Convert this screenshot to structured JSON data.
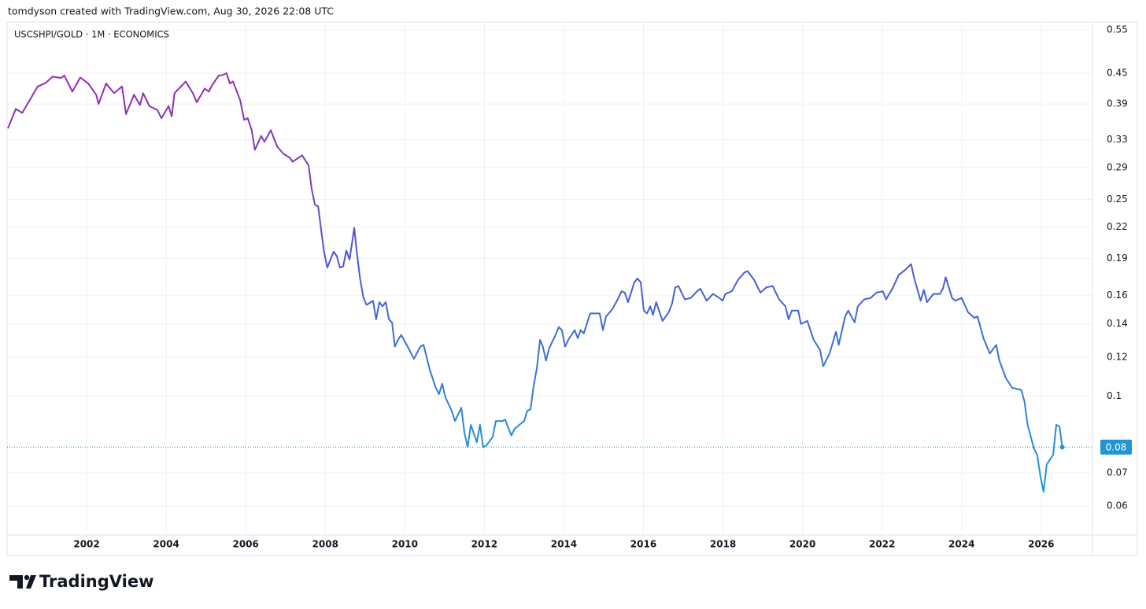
{
  "attribution": "tomdyson created with TradingView.com, Aug 30, 2026 22:08 UTC",
  "footer": {
    "brand": "TradingView"
  },
  "chart_data": {
    "type": "line",
    "title": "USCSHPI/GOLD · 1M · ECONOMICS",
    "log_scale": true,
    "grid": true,
    "line_gradient": [
      "#9c27b0",
      "#4a5bd4",
      "#1e9bd7"
    ],
    "last_value_color": "#2196d3",
    "last_value_label": "0.08",
    "xlim": [
      2000,
      2027.29
    ],
    "xticks": [
      2002,
      2004,
      2006,
      2008,
      2010,
      2012,
      2014,
      2016,
      2018,
      2020,
      2022,
      2024,
      2026
    ],
    "ylim": [
      0.0524,
      0.571
    ],
    "yticks": [
      0.55,
      0.45,
      0.39,
      0.33,
      0.29,
      0.25,
      0.22,
      0.19,
      0.16,
      0.14,
      0.12,
      0.1,
      0.07,
      0.06
    ],
    "x": [
      2000.02,
      2000.22,
      2000.38,
      2000.57,
      2000.77,
      2000.97,
      2001.15,
      2001.35,
      2001.44,
      2001.64,
      2001.84,
      2002.04,
      2002.24,
      2002.3,
      2002.49,
      2002.69,
      2002.89,
      2002.99,
      2003.19,
      2003.34,
      2003.42,
      2003.58,
      2003.78,
      2003.88,
      2004.06,
      2004.14,
      2004.21,
      2004.41,
      2004.49,
      2004.67,
      2004.77,
      2004.97,
      2005.07,
      2005.16,
      2005.32,
      2005.42,
      2005.52,
      2005.6,
      2005.68,
      2005.86,
      2005.96,
      2006.05,
      2006.15,
      2006.23,
      2006.39,
      2006.47,
      2006.63,
      2006.79,
      2006.95,
      2007.1,
      2007.18,
      2007.42,
      2007.58,
      2007.66,
      2007.74,
      2007.82,
      2007.89,
      2007.97,
      2008.05,
      2008.21,
      2008.29,
      2008.37,
      2008.45,
      2008.53,
      2008.61,
      2008.73,
      2008.8,
      2008.88,
      2008.96,
      2009.04,
      2009.2,
      2009.28,
      2009.36,
      2009.44,
      2009.52,
      2009.6,
      2009.68,
      2009.75,
      2009.83,
      2009.91,
      2010.07,
      2010.23,
      2010.39,
      2010.47,
      2010.63,
      2010.78,
      2010.86,
      2010.94,
      2011.02,
      2011.18,
      2011.26,
      2011.42,
      2011.5,
      2011.58,
      2011.66,
      2011.81,
      2011.89,
      2011.97,
      2012.05,
      2012.21,
      2012.29,
      2012.45,
      2012.52,
      2012.68,
      2012.76,
      2012.92,
      2013.0,
      2013.08,
      2013.16,
      2013.24,
      2013.32,
      2013.4,
      2013.47,
      2013.55,
      2013.63,
      2013.79,
      2013.87,
      2013.95,
      2014.03,
      2014.11,
      2014.27,
      2014.35,
      2014.42,
      2014.5,
      2014.66,
      2014.82,
      2014.9,
      2014.98,
      2015.06,
      2015.22,
      2015.37,
      2015.45,
      2015.53,
      2015.61,
      2015.69,
      2015.77,
      2015.85,
      2015.93,
      2016.01,
      2016.09,
      2016.17,
      2016.24,
      2016.32,
      2016.48,
      2016.64,
      2016.72,
      2016.8,
      2016.88,
      2017.04,
      2017.19,
      2017.35,
      2017.43,
      2017.59,
      2017.75,
      2017.91,
      2017.99,
      2018.06,
      2018.22,
      2018.38,
      2018.54,
      2018.62,
      2018.78,
      2018.94,
      2019.09,
      2019.25,
      2019.41,
      2019.57,
      2019.65,
      2019.73,
      2019.89,
      2019.96,
      2020.12,
      2020.28,
      2020.44,
      2020.52,
      2020.68,
      2020.84,
      2020.91,
      2021.07,
      2021.15,
      2021.31,
      2021.39,
      2021.55,
      2021.71,
      2021.86,
      2022.02,
      2022.1,
      2022.26,
      2022.42,
      2022.58,
      2022.73,
      2022.81,
      2022.97,
      2023.05,
      2023.13,
      2023.29,
      2023.45,
      2023.53,
      2023.6,
      2023.76,
      2023.84,
      2024.0,
      2024.16,
      2024.32,
      2024.4,
      2024.55,
      2024.71,
      2024.87,
      2024.95,
      2025.11,
      2025.27,
      2025.5,
      2025.58,
      2025.66,
      2025.82,
      2025.9,
      2025.98,
      2026.06,
      2026.14,
      2026.3,
      2026.38,
      2026.46,
      2026.53
    ],
    "values": [
      0.348,
      0.381,
      0.374,
      0.397,
      0.423,
      0.43,
      0.443,
      0.44,
      0.445,
      0.413,
      0.441,
      0.429,
      0.407,
      0.39,
      0.429,
      0.41,
      0.423,
      0.372,
      0.407,
      0.388,
      0.41,
      0.386,
      0.379,
      0.365,
      0.386,
      0.368,
      0.41,
      0.426,
      0.433,
      0.41,
      0.393,
      0.419,
      0.413,
      0.426,
      0.445,
      0.446,
      0.45,
      0.429,
      0.433,
      0.397,
      0.362,
      0.365,
      0.345,
      0.315,
      0.336,
      0.327,
      0.345,
      0.32,
      0.309,
      0.304,
      0.298,
      0.307,
      0.293,
      0.262,
      0.244,
      0.242,
      0.219,
      0.196,
      0.182,
      0.196,
      0.192,
      0.182,
      0.183,
      0.197,
      0.189,
      0.219,
      0.193,
      0.172,
      0.158,
      0.153,
      0.156,
      0.143,
      0.155,
      0.152,
      0.155,
      0.143,
      0.141,
      0.126,
      0.13,
      0.133,
      0.126,
      0.119,
      0.126,
      0.127,
      0.113,
      0.104,
      0.101,
      0.106,
      0.0995,
      0.0934,
      0.0891,
      0.0948,
      0.0843,
      0.0789,
      0.0875,
      0.0807,
      0.0875,
      0.0789,
      0.0795,
      0.0827,
      0.0891,
      0.0891,
      0.0897,
      0.0833,
      0.0859,
      0.0881,
      0.0891,
      0.0934,
      0.0941,
      0.105,
      0.114,
      0.13,
      0.126,
      0.118,
      0.125,
      0.133,
      0.138,
      0.136,
      0.126,
      0.13,
      0.136,
      0.131,
      0.136,
      0.134,
      0.147,
      0.147,
      0.147,
      0.136,
      0.145,
      0.15,
      0.158,
      0.163,
      0.162,
      0.155,
      0.162,
      0.17,
      0.173,
      0.17,
      0.149,
      0.147,
      0.152,
      0.146,
      0.155,
      0.142,
      0.148,
      0.154,
      0.166,
      0.167,
      0.157,
      0.158,
      0.163,
      0.165,
      0.156,
      0.161,
      0.158,
      0.156,
      0.161,
      0.163,
      0.172,
      0.178,
      0.179,
      0.172,
      0.162,
      0.166,
      0.167,
      0.157,
      0.152,
      0.143,
      0.149,
      0.149,
      0.14,
      0.142,
      0.13,
      0.124,
      0.115,
      0.122,
      0.135,
      0.127,
      0.145,
      0.149,
      0.141,
      0.152,
      0.157,
      0.158,
      0.162,
      0.163,
      0.157,
      0.165,
      0.176,
      0.18,
      0.185,
      0.173,
      0.156,
      0.164,
      0.155,
      0.161,
      0.161,
      0.165,
      0.174,
      0.158,
      0.156,
      0.158,
      0.148,
      0.144,
      0.145,
      0.131,
      0.122,
      0.127,
      0.118,
      0.109,
      0.104,
      0.103,
      0.0976,
      0.0875,
      0.0783,
      0.0761,
      0.0689,
      0.0641,
      0.0728,
      0.0761,
      0.0875,
      0.0869,
      0.0789
    ]
  }
}
